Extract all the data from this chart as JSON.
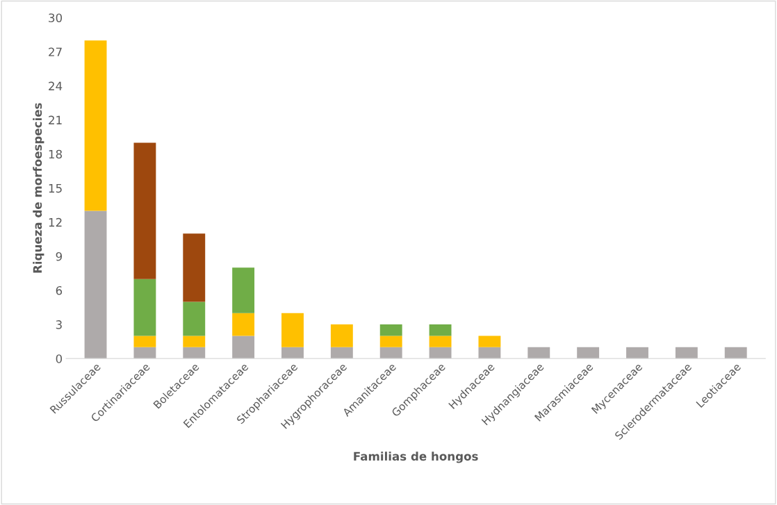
{
  "chart_data": {
    "type": "bar",
    "stacked": true,
    "xlabel": "Familias de hongos",
    "ylabel": "Riqueza de morfoespecies",
    "categories": [
      "Russulaceae",
      "Cortinariaceae",
      "Boletaceae",
      "Entolomataceae",
      "Strophariaceae",
      "Hygrophoraceae",
      "Amanitaceae",
      "Gomphaceae",
      "Hydnaceae",
      "Hydnangiaceae",
      "Marasmiaceae",
      "Mycenaceae",
      "Sclerodermataceae",
      "Leotiaceae"
    ],
    "series": [
      {
        "color": "#aeaaaa",
        "values": [
          13,
          1,
          1,
          2,
          1,
          1,
          1,
          1,
          1,
          1,
          1,
          1,
          1,
          1
        ]
      },
      {
        "color": "#ffc000",
        "values": [
          15,
          1,
          1,
          2,
          3,
          2,
          1,
          1,
          1,
          0,
          0,
          0,
          0,
          0
        ]
      },
      {
        "color": "#70ad47",
        "values": [
          0,
          5,
          3,
          4,
          0,
          0,
          1,
          1,
          0,
          0,
          0,
          0,
          0,
          0
        ]
      },
      {
        "color": "#9e480e",
        "values": [
          0,
          12,
          6,
          0,
          0,
          0,
          0,
          0,
          0,
          0,
          0,
          0,
          0,
          0
        ]
      }
    ],
    "ylim": [
      0,
      30
    ],
    "yticks": [
      0,
      3,
      6,
      9,
      12,
      15,
      18,
      21,
      24,
      27,
      30
    ],
    "grid": false,
    "legend": false
  }
}
